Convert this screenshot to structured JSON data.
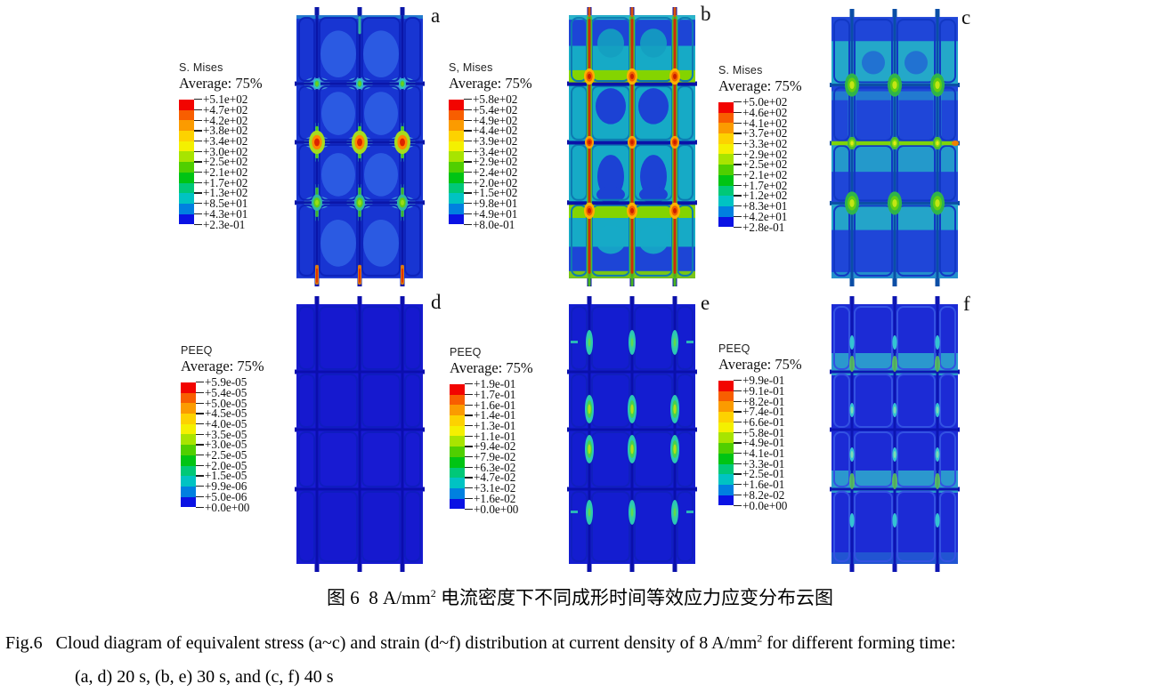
{
  "figure_captions": {
    "sup": "2",
    "zh_pre": "图 6  8 A/mm",
    "zh_post": " 电流密度下不同成形时间等效应力应变分布云图",
    "en1_pre": "Fig.6   Cloud diagram of equivalent stress (a~c) and strain (d~f) distribution at current density of 8 A/mm",
    "en1_post": " for different forming time:",
    "en2": "(a, d) 20 s, (b, e) 30 s, and (c, f) 40 s"
  },
  "colorbar_colors": [
    "#f20400",
    "#f85e00",
    "#fb9b00",
    "#fdd200",
    "#f4f000",
    "#a8e400",
    "#50cf00",
    "#00c414",
    "#00c878",
    "#00c3c3",
    "#0080e0",
    "#0a12e4"
  ],
  "panels": [
    {
      "label": "a",
      "quantity": "S. Mises",
      "average": "Average: 75%",
      "tick_values": [
        "+5.1e+02",
        "+4.7e+02",
        "+4.2e+02",
        "+3.8e+02",
        "+3.4e+02",
        "+3.0e+02",
        "+2.5e+02",
        "+2.1e+02",
        "+1.7e+02",
        "+1.3e+02",
        "+8.5e+01",
        "+4.3e+01",
        "+2.3e-01"
      ]
    },
    {
      "label": "b",
      "quantity": "S, Mises",
      "average": "Average: 75%",
      "tick_values": [
        "+5.8e+02",
        "+5.4e+02",
        "+4.9e+02",
        "+4.4e+02",
        "+3.9e+02",
        "+3.4e+02",
        "+2.9e+02",
        "+2.4e+02",
        "+2.0e+02",
        "+1.5e+02",
        "+9.8e+01",
        "+4.9e+01",
        "+8.0e-01"
      ]
    },
    {
      "label": "c",
      "quantity": "S. Mises",
      "average": "Average: 75%",
      "tick_values": [
        "+5.0e+02",
        "+4.6e+02",
        "+4.1e+02",
        "+3.7e+02",
        "+3.3e+02",
        "+2.9e+02",
        "+2.5e+02",
        "+2.1e+02",
        "+1.7e+02",
        "+1.2e+02",
        "+8.3e+01",
        "+4.2e+01",
        "+2.8e-01"
      ]
    },
    {
      "label": "d",
      "quantity": "PEEQ",
      "average": "Average: 75%",
      "tick_values": [
        "+5.9e-05",
        "+5.4e-05",
        "+5.0e-05",
        "+4.5e-05",
        "+4.0e-05",
        "+3.5e-05",
        "+3.0e-05",
        "+2.5e-05",
        "+2.0e-05",
        "+1.5e-05",
        "+9.9e-06",
        "+5.0e-06",
        "+0.0e+00"
      ]
    },
    {
      "label": "e",
      "quantity": "PEEQ",
      "average": "Average: 75%",
      "tick_values": [
        "+1.9e-01",
        "+1.7e-01",
        "+1.6e-01",
        "+1.4e-01",
        "+1.3e-01",
        "+1.1e-01",
        "+9.4e-02",
        "+7.9e-02",
        "+6.3e-02",
        "+4.7e-02",
        "+3.1e-02",
        "+1.6e-02",
        "+0.0e+00"
      ]
    },
    {
      "label": "f",
      "quantity": "PEEQ",
      "average": "Average: 75%",
      "tick_values": [
        "+9.9e-01",
        "+9.1e-01",
        "+8.2e-01",
        "+7.4e-01",
        "+6.6e-01",
        "+5.8e-01",
        "+4.9e-01",
        "+4.1e-01",
        "+3.3e-01",
        "+2.5e-01",
        "+1.6e-01",
        "+8.2e-02",
        "+0.0e+00"
      ]
    }
  ]
}
